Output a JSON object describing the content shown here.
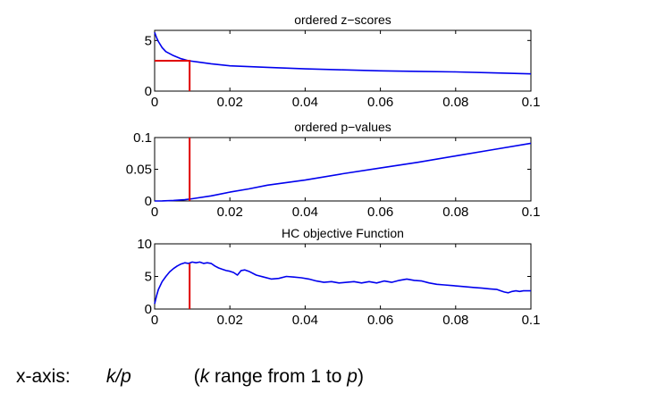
{
  "figure": {
    "caption": {
      "label": "x-axis:",
      "expr": "k/p",
      "note_open": "(",
      "note_k": "k",
      "note_mid": " range from 1 to ",
      "note_p": "p",
      "note_close": ")"
    }
  },
  "colors": {
    "curve": "#0000ee",
    "marker": "#e00000",
    "axis": "#000000"
  },
  "chart_data": [
    {
      "type": "line",
      "title": "ordered z−scores",
      "xlim": [
        0,
        0.1
      ],
      "ylim": [
        0,
        6
      ],
      "xticks": [
        0,
        0.02,
        0.04,
        0.06,
        0.08,
        0.1
      ],
      "xtick_labels": [
        "0",
        "0.02",
        "0.04",
        "0.06",
        "0.08",
        "0.1"
      ],
      "yticks": [
        0,
        5
      ],
      "ytick_labels": [
        "0",
        "5"
      ],
      "series": [
        {
          "x": [
            0,
            0.0005,
            0.001,
            0.002,
            0.003,
            0.005,
            0.007,
            0.009,
            0.012,
            0.015,
            0.02,
            0.03,
            0.04,
            0.05,
            0.06,
            0.07,
            0.08,
            0.09,
            0.1
          ],
          "y": [
            5.8,
            5.3,
            4.9,
            4.3,
            3.9,
            3.5,
            3.2,
            3.0,
            2.85,
            2.7,
            2.5,
            2.35,
            2.2,
            2.1,
            2.0,
            1.95,
            1.9,
            1.8,
            1.7
          ]
        }
      ],
      "marker": {
        "x": 0.0093,
        "y": 3.0,
        "style": "L-shape"
      }
    },
    {
      "type": "line",
      "title": "ordered p−values",
      "xlim": [
        0,
        0.1
      ],
      "ylim": [
        0,
        0.1
      ],
      "xticks": [
        0,
        0.02,
        0.04,
        0.06,
        0.08,
        0.1
      ],
      "xtick_labels": [
        "0",
        "0.02",
        "0.04",
        "0.06",
        "0.08",
        "0.1"
      ],
      "yticks": [
        0,
        0.05,
        0.1
      ],
      "ytick_labels": [
        "0",
        "0.05",
        "0.1"
      ],
      "series": [
        {
          "x": [
            0,
            0.002,
            0.005,
            0.008,
            0.01,
            0.015,
            0.02,
            0.025,
            0.03,
            0.04,
            0.05,
            0.06,
            0.07,
            0.08,
            0.09,
            0.1
          ],
          "y": [
            0,
            0.0002,
            0.0008,
            0.002,
            0.0035,
            0.008,
            0.014,
            0.019,
            0.025,
            0.033,
            0.043,
            0.052,
            0.061,
            0.071,
            0.081,
            0.091
          ]
        }
      ],
      "marker": {
        "x": 0.0093,
        "style": "vertical"
      }
    },
    {
      "type": "line",
      "title": "HC objective Function",
      "xlim": [
        0,
        0.1
      ],
      "ylim": [
        0,
        10
      ],
      "xticks": [
        0,
        0.02,
        0.04,
        0.06,
        0.08,
        0.1
      ],
      "xtick_labels": [
        "0",
        "0.02",
        "0.04",
        "0.06",
        "0.08",
        "0.1"
      ],
      "yticks": [
        0,
        5,
        10
      ],
      "ytick_labels": [
        "0",
        "5",
        "10"
      ],
      "series": [
        {
          "x": [
            0,
            0.0005,
            0.001,
            0.002,
            0.003,
            0.004,
            0.005,
            0.006,
            0.007,
            0.008,
            0.009,
            0.01,
            0.011,
            0.012,
            0.013,
            0.014,
            0.015,
            0.016,
            0.017,
            0.018,
            0.019,
            0.02,
            0.021,
            0.022,
            0.023,
            0.024,
            0.025,
            0.027,
            0.029,
            0.031,
            0.033,
            0.035,
            0.037,
            0.039,
            0.041,
            0.043,
            0.045,
            0.047,
            0.049,
            0.051,
            0.053,
            0.055,
            0.057,
            0.059,
            0.061,
            0.063,
            0.065,
            0.067,
            0.069,
            0.071,
            0.073,
            0.075,
            0.077,
            0.079,
            0.081,
            0.083,
            0.085,
            0.087,
            0.089,
            0.091,
            0.092,
            0.093,
            0.094,
            0.095,
            0.096,
            0.097,
            0.098,
            0.1
          ],
          "y": [
            0.8,
            2.0,
            3.0,
            4.2,
            5.0,
            5.7,
            6.2,
            6.6,
            6.9,
            7.1,
            7.0,
            7.2,
            7.1,
            7.2,
            7.0,
            7.1,
            7.0,
            6.6,
            6.3,
            6.1,
            5.9,
            5.8,
            5.6,
            5.2,
            5.9,
            6.0,
            5.8,
            5.2,
            4.9,
            4.6,
            4.7,
            5.0,
            4.9,
            4.8,
            4.6,
            4.3,
            4.1,
            4.2,
            4.0,
            4.1,
            4.2,
            4.0,
            4.2,
            4.0,
            4.3,
            4.1,
            4.4,
            4.6,
            4.4,
            4.3,
            4.0,
            3.8,
            3.7,
            3.6,
            3.5,
            3.4,
            3.3,
            3.2,
            3.1,
            3.0,
            2.8,
            2.6,
            2.5,
            2.7,
            2.8,
            2.7,
            2.8,
            2.8
          ]
        }
      ],
      "marker": {
        "x": 0.0093,
        "y": 7.0,
        "style": "vertical"
      }
    }
  ]
}
